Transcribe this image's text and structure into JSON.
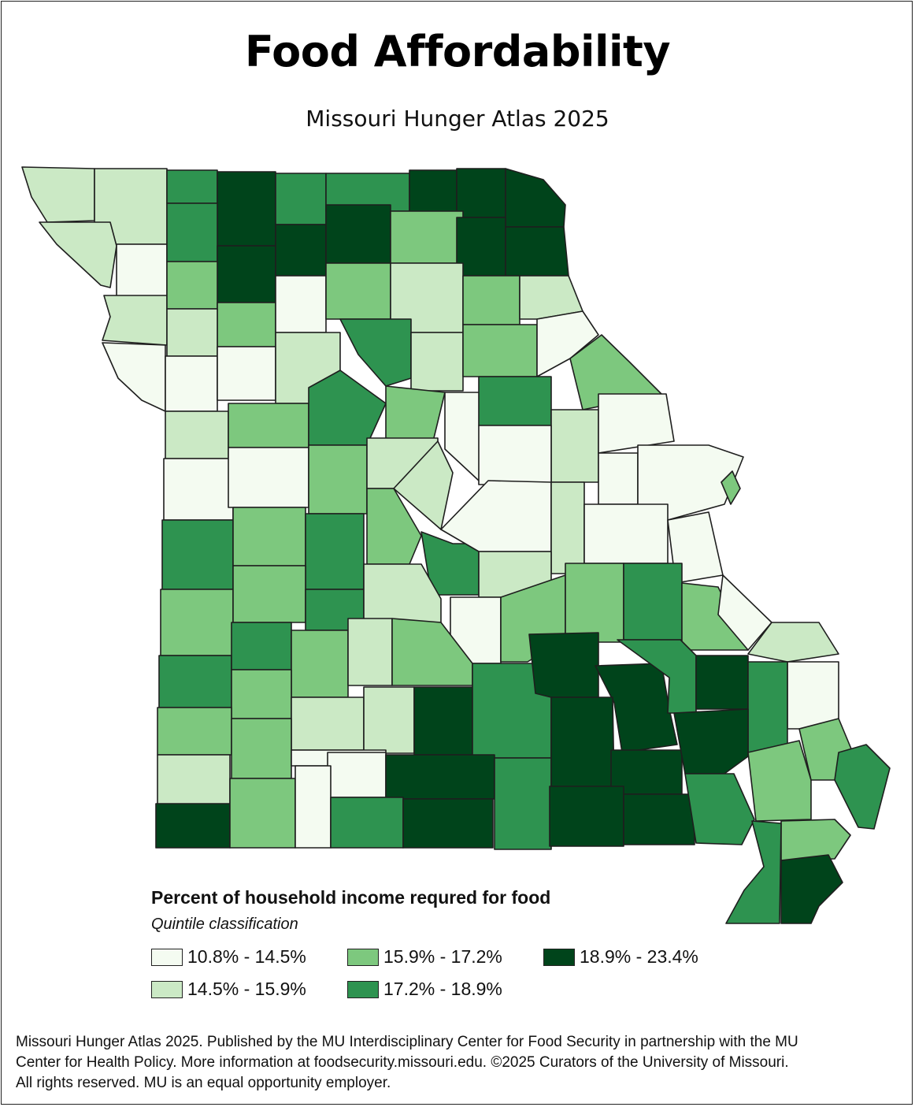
{
  "title": "Food Affordability",
  "subtitle": "Missouri Hunger Atlas 2025",
  "legend": {
    "title": "Percent of household income requred for food",
    "subtitle": "Quintile classification",
    "classes": [
      {
        "label": "10.8% - 14.5%",
        "color": "#f4fbf1"
      },
      {
        "label": "14.5% - 15.9%",
        "color": "#cbe9c5"
      },
      {
        "label": "15.9% - 17.2%",
        "color": "#7dc87e"
      },
      {
        "label": "17.2% - 18.9%",
        "color": "#2e9350"
      },
      {
        "label": "18.9% - 23.4%",
        "color": "#00441b"
      }
    ]
  },
  "footer": {
    "line1": "Missouri Hunger Atlas 2025. Published by the MU Interdisciplinary Center for Food Security in partnership with the MU",
    "line2": "Center for Health Policy. More information at foodsecurity.missouri.edu. ©2025 Curators of the University of Missouri.",
    "line3": "All rights reserved. MU is an equal opportunity employer."
  }
}
